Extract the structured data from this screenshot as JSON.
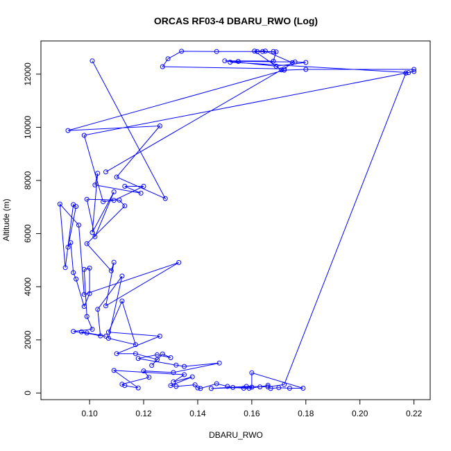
{
  "chart_data": {
    "type": "line",
    "title": "ORCAS RF03-4 DBARU_RWO (Log)",
    "xlabel": "DBARU_RWO",
    "ylabel": "Altitude (m)",
    "xlim": [
      0.082,
      0.226
    ],
    "ylim": [
      -250,
      13250
    ],
    "xticks": [
      0.1,
      0.12,
      0.14,
      0.16,
      0.18,
      0.2,
      0.22
    ],
    "xtick_labels": [
      "0.10",
      "0.12",
      "0.14",
      "0.16",
      "0.18",
      "0.20",
      "0.22"
    ],
    "yticks": [
      0,
      2000,
      4000,
      6000,
      8000,
      10000,
      12000
    ],
    "ytick_labels": [
      "0",
      "2000",
      "4000",
      "6000",
      "8000",
      "10000",
      "12000"
    ],
    "grid": false,
    "legend": "none",
    "series": [
      {
        "color": "#0000ff",
        "marker": "open-circle",
        "points": [
          [
            0.101,
            12500
          ],
          [
            0.128,
            7320
          ],
          [
            0.11,
            8130
          ],
          [
            0.126,
            10050
          ],
          [
            0.092,
            9880
          ],
          [
            0.172,
            12150
          ],
          [
            0.18,
            12180
          ],
          [
            0.22,
            12180
          ],
          [
            0.22,
            12100
          ],
          [
            0.217,
            12040
          ],
          [
            0.098,
            9700
          ],
          [
            0.105,
            7200
          ],
          [
            0.109,
            7250
          ],
          [
            0.12,
            7780
          ],
          [
            0.113,
            7780
          ],
          [
            0.119,
            7520
          ],
          [
            0.102,
            7830
          ],
          [
            0.103,
            8270
          ],
          [
            0.101,
            6040
          ],
          [
            0.109,
            7570
          ],
          [
            0.102,
            5880
          ],
          [
            0.099,
            7290
          ],
          [
            0.111,
            7260
          ],
          [
            0.113,
            7040
          ],
          [
            0.099,
            5620
          ],
          [
            0.108,
            4600
          ],
          [
            0.109,
            4920
          ],
          [
            0.106,
            3280
          ],
          [
            0.133,
            4910
          ],
          [
            0.098,
            3710
          ],
          [
            0.096,
            6320
          ],
          [
            0.089,
            7110
          ],
          [
            0.091,
            4720
          ],
          [
            0.094,
            7090
          ],
          [
            0.095,
            7020
          ],
          [
            0.092,
            5490
          ],
          [
            0.093,
            5660
          ],
          [
            0.094,
            4530
          ],
          [
            0.095,
            4290
          ],
          [
            0.098,
            3260
          ],
          [
            0.1,
            3740
          ],
          [
            0.1,
            4700
          ],
          [
            0.098,
            4650
          ],
          [
            0.099,
            2880
          ],
          [
            0.101,
            2400
          ],
          [
            0.094,
            2320
          ],
          [
            0.106,
            2140
          ],
          [
            0.097,
            2300
          ],
          [
            0.099,
            2260
          ],
          [
            0.104,
            2150
          ],
          [
            0.103,
            3150
          ],
          [
            0.112,
            4400
          ],
          [
            0.107,
            2060
          ],
          [
            0.117,
            1820
          ],
          [
            0.112,
            3460
          ],
          [
            0.107,
            2290
          ],
          [
            0.126,
            2140
          ],
          [
            0.11,
            1480
          ],
          [
            0.117,
            1480
          ],
          [
            0.125,
            1260
          ],
          [
            0.123,
            1040
          ],
          [
            0.127,
            1470
          ],
          [
            0.13,
            1330
          ],
          [
            0.125,
            1440
          ],
          [
            0.118,
            1300
          ],
          [
            0.132,
            1050
          ],
          [
            0.135,
            1000
          ],
          [
            0.148,
            1130
          ],
          [
            0.131,
            770
          ],
          [
            0.12,
            830
          ],
          [
            0.122,
            590
          ],
          [
            0.112,
            330
          ],
          [
            0.113,
            280
          ],
          [
            0.118,
            190
          ],
          [
            0.109,
            850
          ],
          [
            0.135,
            690
          ],
          [
            0.131,
            420
          ],
          [
            0.138,
            610
          ],
          [
            0.13,
            280
          ],
          [
            0.132,
            250
          ],
          [
            0.139,
            310
          ],
          [
            0.14,
            190
          ],
          [
            0.141,
            170
          ],
          [
            0.147,
            350
          ],
          [
            0.151,
            250
          ],
          [
            0.153,
            210
          ],
          [
            0.157,
            180
          ],
          [
            0.159,
            180
          ],
          [
            0.163,
            230
          ],
          [
            0.166,
            290
          ],
          [
            0.167,
            170
          ],
          [
            0.17,
            200
          ],
          [
            0.174,
            180
          ],
          [
            0.179,
            180
          ],
          [
            0.16,
            760
          ],
          [
            0.16,
            220
          ],
          [
            0.145,
            170
          ],
          [
            0.158,
            250
          ],
          [
            0.166,
            230
          ],
          [
            0.172,
            320
          ],
          [
            0.217,
            12040
          ],
          [
            0.218,
            12060
          ],
          [
            0.152,
            12450
          ],
          [
            0.155,
            12480
          ],
          [
            0.176,
            12460
          ],
          [
            0.18,
            12440
          ],
          [
            0.169,
            12300
          ],
          [
            0.15,
            12500
          ],
          [
            0.168,
            12490
          ],
          [
            0.169,
            12840
          ],
          [
            0.162,
            12850
          ],
          [
            0.164,
            12850
          ],
          [
            0.168,
            12850
          ],
          [
            0.147,
            12850
          ],
          [
            0.134,
            12860
          ],
          [
            0.129,
            12580
          ],
          [
            0.127,
            12280
          ],
          [
            0.172,
            12200
          ],
          [
            0.175,
            12430
          ],
          [
            0.165,
            12870
          ],
          [
            0.161,
            12870
          ],
          [
            0.171,
            12160
          ],
          [
            0.106,
            8320
          ]
        ]
      }
    ]
  }
}
